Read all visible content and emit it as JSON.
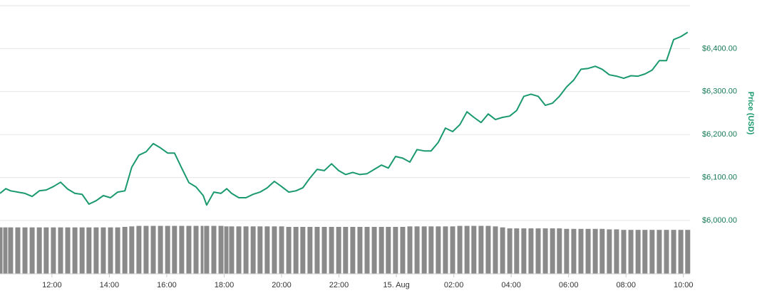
{
  "chart_data": {
    "type": "line",
    "y_label": "Price (USD)",
    "x": [
      10.19,
      10.39,
      10.56,
      10.81,
      11.06,
      11.31,
      11.56,
      11.8,
      12.05,
      12.3,
      12.55,
      12.8,
      13.05,
      13.29,
      13.54,
      13.79,
      14.04,
      14.29,
      14.54,
      14.78,
      15.03,
      15.28,
      15.53,
      15.78,
      16.03,
      16.27,
      16.52,
      16.77,
      17.02,
      17.27,
      17.39,
      17.64,
      17.89,
      18.09,
      18.26,
      18.51,
      18.76,
      19.01,
      19.25,
      19.5,
      19.75,
      20.0,
      20.25,
      20.5,
      20.74,
      20.99,
      21.24,
      21.49,
      21.74,
      21.99,
      22.23,
      22.48,
      22.73,
      22.98,
      23.23,
      23.48,
      23.72,
      23.97,
      24.22,
      24.47,
      24.72,
      24.97,
      25.21,
      25.46,
      25.71,
      25.96,
      26.21,
      26.46,
      26.7,
      26.95,
      27.2,
      27.45,
      27.7,
      27.95,
      28.19,
      28.44,
      28.69,
      28.94,
      29.19,
      29.44,
      29.68,
      29.93,
      30.18,
      30.43,
      30.68,
      30.93,
      31.17,
      31.42,
      31.67,
      31.92,
      32.17,
      32.42,
      32.66,
      32.91,
      33.16,
      33.41,
      33.66,
      33.91,
      34.15
    ],
    "series": [
      {
        "color": "#1a9a6c",
        "values": [
          6063,
          6074,
          6069,
          6066,
          6063,
          6056,
          6069,
          6071,
          6079,
          6089,
          6073,
          6063,
          6061,
          6038,
          6046,
          6058,
          6053,
          6066,
          6069,
          6124,
          6152,
          6160,
          6179,
          6169,
          6157,
          6157,
          6122,
          6088,
          6078,
          6058,
          6036,
          6066,
          6063,
          6074,
          6063,
          6053,
          6053,
          6061,
          6066,
          6076,
          6091,
          6079,
          6066,
          6069,
          6076,
          6099,
          6119,
          6116,
          6132,
          6116,
          6107,
          6112,
          6107,
          6109,
          6119,
          6129,
          6122,
          6149,
          6145,
          6136,
          6165,
          6162,
          6162,
          6182,
          6215,
          6207,
          6223,
          6253,
          6240,
          6228,
          6248,
          6235,
          6240,
          6243,
          6256,
          6289,
          6294,
          6289,
          6268,
          6273,
          6289,
          6311,
          6327,
          6352,
          6354,
          6359,
          6352,
          6339,
          6336,
          6331,
          6337,
          6336,
          6341,
          6350,
          6372,
          6372,
          6421,
          6428,
          6438
        ]
      }
    ],
    "volume": {
      "color": "#8a8a8a",
      "lim": [
        0,
        100
      ],
      "values": [
        94,
        94,
        94,
        94,
        94,
        94,
        94,
        94,
        94,
        94,
        94,
        94,
        94,
        94,
        94,
        94,
        94,
        94,
        95,
        96,
        97,
        97,
        97,
        97,
        97,
        97,
        97,
        97,
        97,
        97,
        97,
        97,
        97,
        96,
        96,
        96,
        96,
        96,
        96,
        96,
        96,
        96,
        95,
        95,
        95,
        95,
        95,
        95,
        95,
        95,
        95,
        95,
        95,
        95,
        95,
        95,
        95,
        95,
        95,
        96,
        96,
        96,
        96,
        96,
        96,
        96,
        97,
        97,
        97,
        97,
        97,
        96,
        94,
        92,
        92,
        92,
        92,
        92,
        92,
        92,
        92,
        91,
        91,
        91,
        91,
        91,
        91,
        90,
        90,
        89,
        89,
        89,
        89,
        89,
        89,
        89,
        89,
        89,
        89
      ]
    },
    "xlim": [
      10.19,
      34.23
    ],
    "xticks": [
      {
        "value": 12,
        "label": "12:00"
      },
      {
        "value": 14,
        "label": "14:00"
      },
      {
        "value": 16,
        "label": "16:00"
      },
      {
        "value": 18,
        "label": "18:00"
      },
      {
        "value": 20,
        "label": "20:00"
      },
      {
        "value": 22,
        "label": "22:00"
      },
      {
        "value": 24,
        "label": "15. Aug"
      },
      {
        "value": 26,
        "label": "02:00"
      },
      {
        "value": 28,
        "label": "04:00"
      },
      {
        "value": 30,
        "label": "06:00"
      },
      {
        "value": 32,
        "label": "08:00"
      },
      {
        "value": 34,
        "label": "10:00"
      }
    ],
    "ylim": [
      6000,
      6500
    ],
    "yticks": [
      {
        "value": 6000,
        "label": "$6,000.00"
      },
      {
        "value": 6100,
        "label": "$6,100.00"
      },
      {
        "value": 6200,
        "label": "$6,200.00"
      },
      {
        "value": 6300,
        "label": "$6,300.00"
      },
      {
        "value": 6400,
        "label": "$6,400.00"
      }
    ],
    "grid": true
  }
}
